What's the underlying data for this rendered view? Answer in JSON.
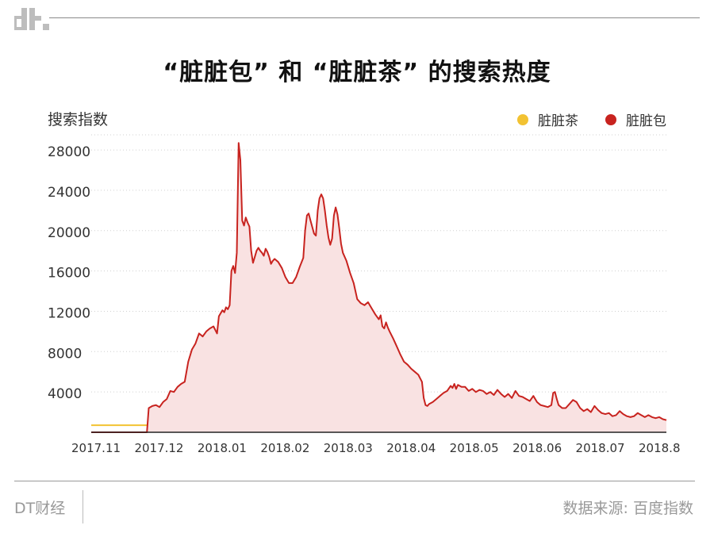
{
  "header": {
    "logo_text": "dt."
  },
  "chart_data": {
    "type": "line",
    "title": "“脏脏包” 和 “脏脏茶” 的搜索热度",
    "ylabel": "搜索指数",
    "xlabel": "",
    "ylim": [
      0,
      29500
    ],
    "yticks": [
      "4000",
      "8000",
      "12000",
      "16000",
      "20000",
      "24000",
      "28000"
    ],
    "xticks": [
      "2017.11",
      "2017.12",
      "2018.01",
      "2018.02",
      "2018.03",
      "2018.04",
      "2018.05",
      "2018.06",
      "2018.07",
      "2018.8"
    ],
    "legend_position": "top-right",
    "grid": "horizontal dotted",
    "series": [
      {
        "name": "脏脏茶",
        "color": "#f2c232",
        "points": [
          [
            0,
            700
          ],
          [
            60,
            700
          ],
          [
            100,
            700
          ],
          [
            150,
            700
          ],
          [
            190,
            700
          ],
          [
            193,
            900
          ],
          [
            196,
            1200
          ],
          [
            198,
            1000
          ],
          [
            200,
            1300
          ],
          [
            203,
            1100
          ],
          [
            206,
            1300
          ],
          [
            210,
            1200
          ],
          [
            215,
            1150
          ],
          [
            220,
            1250
          ],
          [
            225,
            1200
          ],
          [
            230,
            1350
          ],
          [
            235,
            1300
          ],
          [
            240,
            1200
          ],
          [
            245,
            1100
          ],
          [
            250,
            1150
          ],
          [
            255,
            1100
          ],
          [
            260,
            1250
          ],
          [
            265,
            1050
          ],
          [
            270,
            1150
          ],
          [
            275,
            1050
          ],
          [
            280,
            1300
          ],
          [
            285,
            1200
          ],
          [
            290,
            1300
          ],
          [
            295,
            1350
          ],
          [
            300,
            1250
          ],
          [
            305,
            1300
          ],
          [
            310,
            1250
          ],
          [
            315,
            1300
          ],
          [
            320,
            1200
          ]
        ]
      },
      {
        "name": "脏脏包",
        "color": "#c8231f",
        "fill": "#f9e2e2",
        "points": [
          [
            0,
            0
          ],
          [
            10,
            0
          ],
          [
            20,
            0
          ],
          [
            25,
            0
          ],
          [
            30,
            0
          ],
          [
            31,
            0
          ],
          [
            32,
            2400
          ],
          [
            34,
            2600
          ],
          [
            36,
            2700
          ],
          [
            38,
            2500
          ],
          [
            40,
            3000
          ],
          [
            42,
            3300
          ],
          [
            44,
            4100
          ],
          [
            46,
            4000
          ],
          [
            48,
            4500
          ],
          [
            50,
            4800
          ],
          [
            52,
            5000
          ],
          [
            54,
            7000
          ],
          [
            56,
            8200
          ],
          [
            58,
            8800
          ],
          [
            60,
            9800
          ],
          [
            62,
            9500
          ],
          [
            64,
            10000
          ],
          [
            66,
            10300
          ],
          [
            68,
            10500
          ],
          [
            70,
            9800
          ],
          [
            71,
            11500
          ],
          [
            72,
            11800
          ],
          [
            73,
            12100
          ],
          [
            74,
            11900
          ],
          [
            75,
            12400
          ],
          [
            76,
            12200
          ],
          [
            77,
            12600
          ],
          [
            78,
            16000
          ],
          [
            79,
            16500
          ],
          [
            80,
            15800
          ],
          [
            81,
            17800
          ],
          [
            82,
            28700
          ],
          [
            83,
            27000
          ],
          [
            84,
            21000
          ],
          [
            85,
            20500
          ],
          [
            86,
            21300
          ],
          [
            87,
            20800
          ],
          [
            88,
            20400
          ],
          [
            89,
            18000
          ],
          [
            90,
            16800
          ],
          [
            91,
            17400
          ],
          [
            92,
            18000
          ],
          [
            93,
            18300
          ],
          [
            94,
            18000
          ],
          [
            95,
            17800
          ],
          [
            96,
            17500
          ],
          [
            97,
            18200
          ],
          [
            98,
            17900
          ],
          [
            99,
            17400
          ],
          [
            100,
            16700
          ],
          [
            101,
            17000
          ],
          [
            102,
            17200
          ],
          [
            104,
            16900
          ],
          [
            106,
            16300
          ],
          [
            108,
            15400
          ],
          [
            110,
            14800
          ],
          [
            112,
            14800
          ],
          [
            114,
            15400
          ],
          [
            116,
            16400
          ],
          [
            118,
            17300
          ],
          [
            119,
            20000
          ],
          [
            120,
            21500
          ],
          [
            121,
            21700
          ],
          [
            122,
            21000
          ],
          [
            124,
            19700
          ],
          [
            125,
            19500
          ],
          [
            126,
            22000
          ],
          [
            127,
            23200
          ],
          [
            128,
            23600
          ],
          [
            129,
            23200
          ],
          [
            130,
            22000
          ],
          [
            131,
            20500
          ],
          [
            132,
            19300
          ],
          [
            133,
            18600
          ],
          [
            134,
            19200
          ],
          [
            135,
            21500
          ],
          [
            136,
            22300
          ],
          [
            137,
            21600
          ],
          [
            138,
            20200
          ],
          [
            139,
            18700
          ],
          [
            140,
            17800
          ],
          [
            142,
            17000
          ],
          [
            144,
            15800
          ],
          [
            146,
            14800
          ],
          [
            148,
            13200
          ],
          [
            150,
            12800
          ],
          [
            152,
            12600
          ],
          [
            154,
            12900
          ],
          [
            156,
            12300
          ],
          [
            158,
            11700
          ],
          [
            160,
            11200
          ],
          [
            161,
            11600
          ],
          [
            162,
            10500
          ],
          [
            163,
            10300
          ],
          [
            164,
            10900
          ],
          [
            165,
            10400
          ],
          [
            166,
            10000
          ],
          [
            168,
            9300
          ],
          [
            170,
            8500
          ],
          [
            172,
            7700
          ],
          [
            174,
            7000
          ],
          [
            176,
            6700
          ],
          [
            178,
            6300
          ],
          [
            180,
            6000
          ],
          [
            182,
            5700
          ],
          [
            184,
            5000
          ],
          [
            185,
            3400
          ],
          [
            186,
            2700
          ],
          [
            187,
            2600
          ],
          [
            188,
            2800
          ],
          [
            190,
            3000
          ],
          [
            192,
            3300
          ],
          [
            194,
            3600
          ],
          [
            196,
            3900
          ],
          [
            198,
            4100
          ],
          [
            200,
            4600
          ],
          [
            201,
            4400
          ],
          [
            202,
            4800
          ],
          [
            203,
            4300
          ],
          [
            204,
            4700
          ],
          [
            206,
            4500
          ],
          [
            208,
            4500
          ],
          [
            210,
            4100
          ],
          [
            212,
            4300
          ],
          [
            214,
            4000
          ],
          [
            216,
            4200
          ],
          [
            218,
            4100
          ],
          [
            220,
            3800
          ],
          [
            222,
            4000
          ],
          [
            224,
            3700
          ],
          [
            226,
            4200
          ],
          [
            228,
            3800
          ],
          [
            230,
            3500
          ],
          [
            232,
            3800
          ],
          [
            234,
            3400
          ],
          [
            236,
            4100
          ],
          [
            238,
            3600
          ],
          [
            240,
            3500
          ],
          [
            242,
            3300
          ],
          [
            244,
            3100
          ],
          [
            246,
            3600
          ],
          [
            248,
            3000
          ],
          [
            250,
            2700
          ],
          [
            252,
            2600
          ],
          [
            254,
            2500
          ],
          [
            256,
            2700
          ],
          [
            257,
            3900
          ],
          [
            258,
            4000
          ],
          [
            259,
            3300
          ],
          [
            260,
            2700
          ],
          [
            262,
            2400
          ],
          [
            264,
            2400
          ],
          [
            266,
            2800
          ],
          [
            268,
            3200
          ],
          [
            270,
            3000
          ],
          [
            272,
            2400
          ],
          [
            274,
            2100
          ],
          [
            276,
            2300
          ],
          [
            278,
            2000
          ],
          [
            280,
            2600
          ],
          [
            282,
            2200
          ],
          [
            284,
            1900
          ],
          [
            286,
            1800
          ],
          [
            288,
            1900
          ],
          [
            290,
            1600
          ],
          [
            292,
            1700
          ],
          [
            294,
            2100
          ],
          [
            296,
            1800
          ],
          [
            298,
            1600
          ],
          [
            300,
            1500
          ],
          [
            302,
            1600
          ],
          [
            304,
            1900
          ],
          [
            306,
            1700
          ],
          [
            308,
            1500
          ],
          [
            310,
            1700
          ],
          [
            312,
            1500
          ],
          [
            314,
            1400
          ],
          [
            316,
            1500
          ],
          [
            318,
            1300
          ],
          [
            320,
            1200
          ]
        ]
      }
    ]
  },
  "footer": {
    "brand": "DT财经",
    "source": "数据来源: 百度指数"
  }
}
